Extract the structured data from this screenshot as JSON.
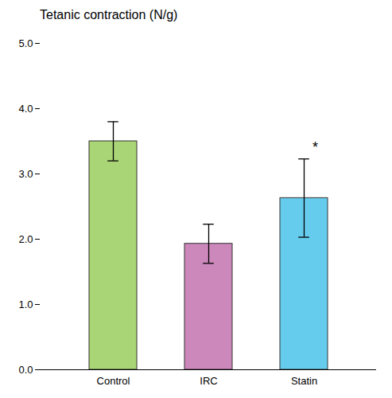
{
  "chart_data": {
    "type": "bar",
    "title": "Tetanic contraction (N/g)",
    "categories": [
      "Control",
      "IRC",
      "Statin"
    ],
    "values": [
      3.5,
      1.93,
      2.63
    ],
    "errors": [
      0.3,
      0.3,
      0.6
    ],
    "colors": [
      "#aad576",
      "#cc88bb",
      "#66ccee"
    ],
    "ylim": [
      0,
      5
    ],
    "yticks": [
      0,
      1,
      2,
      3,
      4,
      5
    ],
    "grid": false,
    "annotations": [
      {
        "text": "*",
        "category": "Statin"
      }
    ]
  }
}
